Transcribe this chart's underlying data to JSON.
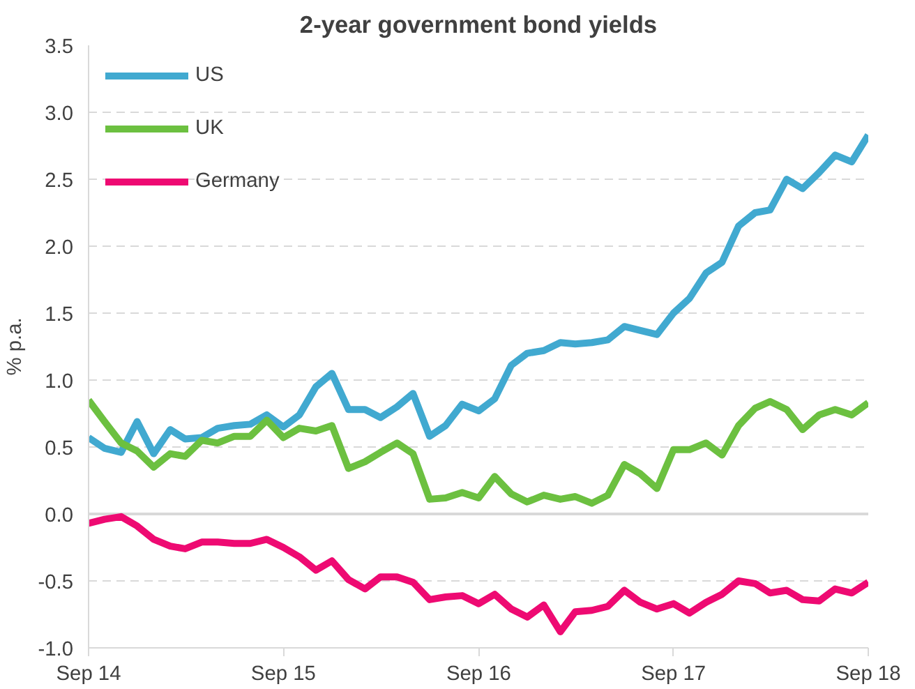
{
  "chart_data": {
    "type": "line",
    "title": "2-year government bond yields",
    "ylabel": "% p.a.",
    "x": [
      "2014-09",
      "2014-10",
      "2014-11",
      "2014-12",
      "2015-01",
      "2015-02",
      "2015-03",
      "2015-04",
      "2015-05",
      "2015-06",
      "2015-07",
      "2015-08",
      "2015-09",
      "2015-10",
      "2015-11",
      "2015-12",
      "2016-01",
      "2016-02",
      "2016-03",
      "2016-04",
      "2016-05",
      "2016-06",
      "2016-07",
      "2016-08",
      "2016-09",
      "2016-10",
      "2016-11",
      "2016-12",
      "2017-01",
      "2017-02",
      "2017-03",
      "2017-04",
      "2017-05",
      "2017-06",
      "2017-07",
      "2017-08",
      "2017-09",
      "2017-10",
      "2017-11",
      "2017-12",
      "2018-01",
      "2018-02",
      "2018-03",
      "2018-04",
      "2018-05",
      "2018-06",
      "2018-07",
      "2018-08",
      "2018-09"
    ],
    "series": [
      {
        "name": "US",
        "color": "#41a9d0",
        "values": [
          0.57,
          0.49,
          0.46,
          0.69,
          0.45,
          0.63,
          0.56,
          0.57,
          0.64,
          0.66,
          0.67,
          0.74,
          0.65,
          0.74,
          0.95,
          1.05,
          0.78,
          0.78,
          0.72,
          0.8,
          0.9,
          0.58,
          0.66,
          0.82,
          0.77,
          0.86,
          1.11,
          1.2,
          1.22,
          1.28,
          1.27,
          1.28,
          1.3,
          1.4,
          1.37,
          1.34,
          1.5,
          1.61,
          1.8,
          1.88,
          2.15,
          2.25,
          2.27,
          2.5,
          2.43,
          2.55,
          2.68,
          2.63,
          2.83
        ]
      },
      {
        "name": "UK",
        "color": "#6cc040",
        "values": [
          0.85,
          0.69,
          0.53,
          0.47,
          0.35,
          0.45,
          0.43,
          0.55,
          0.53,
          0.58,
          0.58,
          0.7,
          0.57,
          0.64,
          0.62,
          0.66,
          0.34,
          0.39,
          0.46,
          0.53,
          0.45,
          0.11,
          0.12,
          0.16,
          0.12,
          0.28,
          0.15,
          0.09,
          0.14,
          0.11,
          0.13,
          0.08,
          0.14,
          0.37,
          0.3,
          0.19,
          0.48,
          0.48,
          0.53,
          0.44,
          0.66,
          0.79,
          0.84,
          0.78,
          0.63,
          0.74,
          0.78,
          0.74,
          0.83
        ]
      },
      {
        "name": "Germany",
        "color": "#ee0a72",
        "values": [
          -0.07,
          -0.04,
          -0.02,
          -0.09,
          -0.19,
          -0.24,
          -0.26,
          -0.21,
          -0.21,
          -0.22,
          -0.22,
          -0.19,
          -0.25,
          -0.32,
          -0.42,
          -0.35,
          -0.49,
          -0.56,
          -0.47,
          -0.47,
          -0.51,
          -0.64,
          -0.62,
          -0.61,
          -0.67,
          -0.6,
          -0.71,
          -0.77,
          -0.68,
          -0.88,
          -0.73,
          -0.72,
          -0.69,
          -0.57,
          -0.66,
          -0.71,
          -0.67,
          -0.74,
          -0.66,
          -0.6,
          -0.5,
          -0.52,
          -0.59,
          -0.57,
          -0.64,
          -0.65,
          -0.56,
          -0.59,
          -0.51
        ]
      }
    ],
    "xlim": [
      "2014-09",
      "2018-09"
    ],
    "xticks": [
      {
        "value": "2014-09",
        "label": "Sep 14"
      },
      {
        "value": "2015-09",
        "label": "Sep 15"
      },
      {
        "value": "2016-09",
        "label": "Sep 16"
      },
      {
        "value": "2017-09",
        "label": "Sep 17"
      },
      {
        "value": "2018-09",
        "label": "Sep 18"
      }
    ],
    "ylim": [
      -1.0,
      3.5
    ],
    "yticks": [
      {
        "value": -1.0,
        "label": "-1.0"
      },
      {
        "value": -0.5,
        "label": "-0.5"
      },
      {
        "value": 0.0,
        "label": "0.0"
      },
      {
        "value": 0.5,
        "label": "0.5"
      },
      {
        "value": 1.0,
        "label": "1.0"
      },
      {
        "value": 1.5,
        "label": "1.5"
      },
      {
        "value": 2.0,
        "label": "2.0"
      },
      {
        "value": 2.5,
        "label": "2.5"
      },
      {
        "value": 3.0,
        "label": "3.0"
      },
      {
        "value": 3.5,
        "label": "3.5"
      }
    ],
    "ref_lines": [
      {
        "axis": "y",
        "value": 0,
        "color": "#d9d9d9",
        "line_style": "solid"
      }
    ],
    "grid": "y",
    "legend": "top left",
    "line_style": "solid",
    "marker": "none"
  }
}
